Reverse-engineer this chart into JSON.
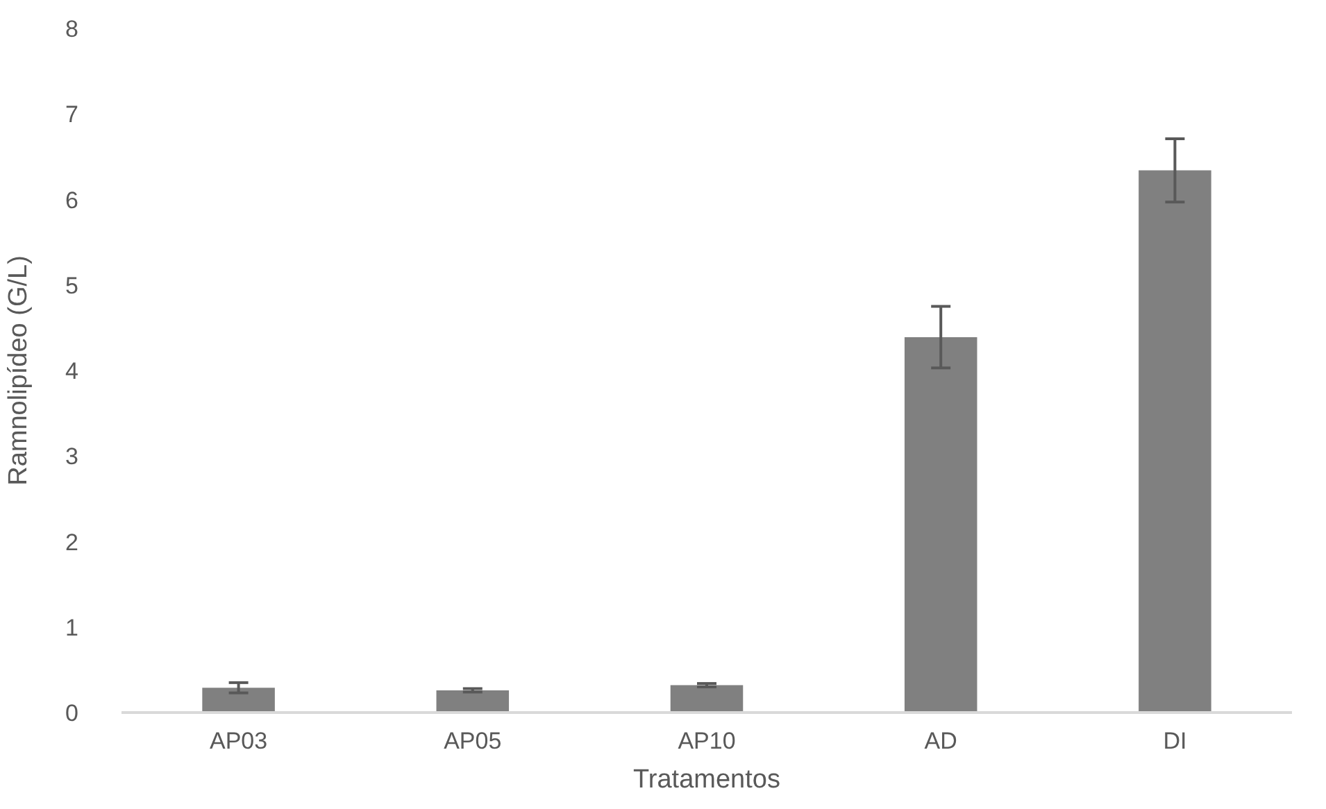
{
  "chart_data": {
    "type": "bar",
    "xlabel": "Tratamentos",
    "ylabel": "Ramnolipídeo (G/L)",
    "categories": [
      "AP03",
      "AP05",
      "AP10",
      "AD",
      "DI"
    ],
    "values": [
      0.29,
      0.26,
      0.32,
      4.39,
      6.34
    ],
    "errors": [
      0.06,
      0.02,
      0.02,
      0.36,
      0.37
    ],
    "color": "#808080",
    "ylim": [
      0,
      8
    ],
    "yticks": [
      0,
      1,
      2,
      3,
      4,
      5,
      6,
      7,
      8
    ],
    "grid": false
  }
}
